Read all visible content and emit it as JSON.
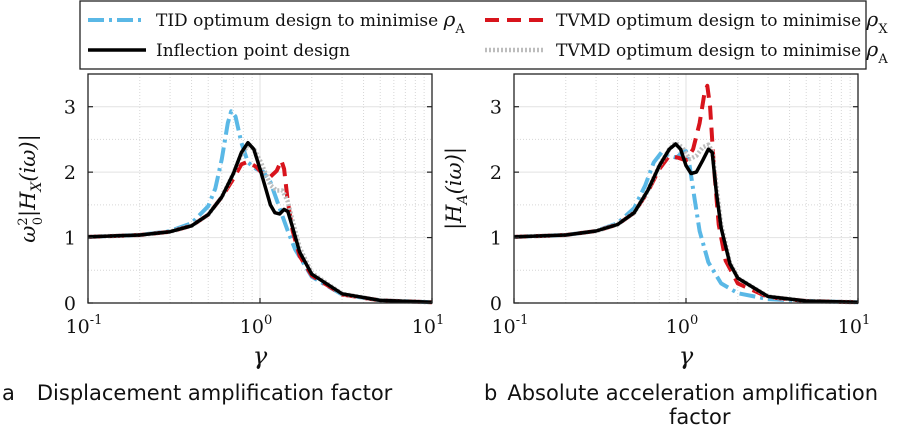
{
  "legend": {
    "entries": [
      {
        "label": "TID optimum design to minimise ",
        "sym": "ρ",
        "sub": "A",
        "color": "#5ab8e6",
        "dash": "16 5 3 5",
        "width": 4
      },
      {
        "label": "TVMD optimum design to minimise ",
        "sym": "ρ",
        "sub": "X",
        "color": "#d8141c",
        "dash": "14 8",
        "width": 4
      },
      {
        "label": "Inflection point design",
        "sym": "",
        "sub": "",
        "color": "#000000",
        "dash": "",
        "width": 3.5
      },
      {
        "label": "TVMD optimum design to minimise ",
        "sym": "ρ",
        "sub": "A",
        "color": "#bdbdbd",
        "dash": "2 2",
        "width": 4.5
      }
    ]
  },
  "captions": {
    "a": {
      "letter": "a",
      "text": "Displacement amplification factor"
    },
    "b": {
      "letter": "b",
      "text": "Absolute acceleration amplification",
      "text2": "factor"
    }
  },
  "chart_data": [
    {
      "id": "a",
      "type": "line",
      "title": "Displacement amplification factor",
      "xlabel": "γ",
      "ylabel": "ω0² |H_X(iω)|",
      "xscale": "log",
      "xlim": [
        0.1,
        10
      ],
      "ylim": [
        0,
        3.5
      ],
      "xticks": [
        {
          "v": 0.1,
          "base": "10",
          "exp": "-1"
        },
        {
          "v": 1,
          "base": "10",
          "exp": "0"
        },
        {
          "v": 10,
          "base": "10",
          "exp": "1"
        }
      ],
      "yticks": [
        0,
        1,
        2,
        3
      ],
      "grid": true,
      "series": [
        {
          "name": "TID optimum design to minimise ρA",
          "points": [
            [
              0.1,
              1.01
            ],
            [
              0.2,
              1.04
            ],
            [
              0.3,
              1.1
            ],
            [
              0.4,
              1.22
            ],
            [
              0.5,
              1.48
            ],
            [
              0.55,
              1.75
            ],
            [
              0.6,
              2.2
            ],
            [
              0.65,
              2.75
            ],
            [
              0.68,
              2.93
            ],
            [
              0.72,
              2.85
            ],
            [
              0.78,
              2.45
            ],
            [
              0.85,
              2.15
            ],
            [
              0.95,
              2.05
            ],
            [
              1.05,
              2.0
            ],
            [
              1.15,
              1.85
            ],
            [
              1.3,
              1.45
            ],
            [
              1.45,
              1.1
            ],
            [
              1.6,
              0.82
            ],
            [
              2.0,
              0.4
            ],
            [
              3.0,
              0.13
            ],
            [
              5.0,
              0.04
            ],
            [
              10.0,
              0.01
            ]
          ]
        },
        {
          "name": "TVMD optimum design to minimise ρX",
          "points": [
            [
              0.1,
              1.01
            ],
            [
              0.2,
              1.04
            ],
            [
              0.3,
              1.09
            ],
            [
              0.4,
              1.18
            ],
            [
              0.5,
              1.35
            ],
            [
              0.6,
              1.62
            ],
            [
              0.7,
              1.9
            ],
            [
              0.78,
              2.12
            ],
            [
              0.85,
              2.16
            ],
            [
              0.95,
              2.08
            ],
            [
              1.05,
              1.96
            ],
            [
              1.15,
              1.93
            ],
            [
              1.25,
              2.02
            ],
            [
              1.33,
              2.18
            ],
            [
              1.38,
              2.05
            ],
            [
              1.45,
              1.55
            ],
            [
              1.55,
              1.1
            ],
            [
              1.7,
              0.72
            ],
            [
              2.0,
              0.42
            ],
            [
              3.0,
              0.13
            ],
            [
              5.0,
              0.04
            ],
            [
              10.0,
              0.01
            ]
          ]
        },
        {
          "name": "Inflection point design",
          "points": [
            [
              0.1,
              1.01
            ],
            [
              0.2,
              1.04
            ],
            [
              0.3,
              1.09
            ],
            [
              0.4,
              1.18
            ],
            [
              0.5,
              1.35
            ],
            [
              0.6,
              1.62
            ],
            [
              0.7,
              1.98
            ],
            [
              0.78,
              2.3
            ],
            [
              0.85,
              2.45
            ],
            [
              0.92,
              2.35
            ],
            [
              1.0,
              2.05
            ],
            [
              1.08,
              1.75
            ],
            [
              1.15,
              1.5
            ],
            [
              1.22,
              1.38
            ],
            [
              1.3,
              1.36
            ],
            [
              1.38,
              1.43
            ],
            [
              1.45,
              1.4
            ],
            [
              1.55,
              1.15
            ],
            [
              1.7,
              0.78
            ],
            [
              2.0,
              0.44
            ],
            [
              3.0,
              0.14
            ],
            [
              5.0,
              0.04
            ],
            [
              10.0,
              0.01
            ]
          ]
        },
        {
          "name": "TVMD optimum design to minimise ρA",
          "points": [
            [
              0.1,
              1.01
            ],
            [
              0.2,
              1.04
            ],
            [
              0.3,
              1.09
            ],
            [
              0.4,
              1.18
            ],
            [
              0.5,
              1.35
            ],
            [
              0.6,
              1.62
            ],
            [
              0.7,
              1.98
            ],
            [
              0.78,
              2.28
            ],
            [
              0.85,
              2.4
            ],
            [
              0.92,
              2.36
            ],
            [
              1.0,
              2.18
            ],
            [
              1.08,
              1.98
            ],
            [
              1.15,
              1.8
            ],
            [
              1.25,
              1.72
            ],
            [
              1.35,
              1.72
            ],
            [
              1.45,
              1.55
            ],
            [
              1.55,
              1.25
            ],
            [
              1.7,
              0.85
            ],
            [
              2.0,
              0.46
            ],
            [
              3.0,
              0.14
            ],
            [
              5.0,
              0.04
            ],
            [
              10.0,
              0.01
            ]
          ]
        }
      ]
    },
    {
      "id": "b",
      "type": "line",
      "title": "Absolute acceleration amplification factor",
      "xlabel": "γ",
      "ylabel": "|H_A(iω)|",
      "xscale": "log",
      "xlim": [
        0.1,
        10
      ],
      "ylim": [
        0,
        3.5
      ],
      "xticks": [
        {
          "v": 0.1,
          "base": "10",
          "exp": "-1"
        },
        {
          "v": 1,
          "base": "10",
          "exp": "0"
        },
        {
          "v": 10,
          "base": "10",
          "exp": "1"
        }
      ],
      "yticks": [
        0,
        1,
        2,
        3
      ],
      "grid": true,
      "series": [
        {
          "name": "TID optimum design to minimise ρA",
          "points": [
            [
              0.1,
              1.01
            ],
            [
              0.2,
              1.04
            ],
            [
              0.3,
              1.1
            ],
            [
              0.4,
              1.22
            ],
            [
              0.5,
              1.45
            ],
            [
              0.58,
              1.8
            ],
            [
              0.65,
              2.15
            ],
            [
              0.72,
              2.3
            ],
            [
              0.8,
              2.25
            ],
            [
              0.88,
              2.22
            ],
            [
              0.95,
              2.3
            ],
            [
              1.0,
              2.32
            ],
            [
              1.05,
              2.1
            ],
            [
              1.12,
              1.6
            ],
            [
              1.2,
              1.1
            ],
            [
              1.35,
              0.62
            ],
            [
              1.6,
              0.3
            ],
            [
              2.0,
              0.15
            ],
            [
              3.0,
              0.06
            ],
            [
              5.0,
              0.03
            ],
            [
              10.0,
              0.01
            ]
          ]
        },
        {
          "name": "TVMD optimum design to minimise ρX",
          "points": [
            [
              0.1,
              1.01
            ],
            [
              0.2,
              1.04
            ],
            [
              0.3,
              1.1
            ],
            [
              0.4,
              1.2
            ],
            [
              0.5,
              1.38
            ],
            [
              0.6,
              1.7
            ],
            [
              0.7,
              2.05
            ],
            [
              0.8,
              2.25
            ],
            [
              0.9,
              2.22
            ],
            [
              1.0,
              2.18
            ],
            [
              1.1,
              2.35
            ],
            [
              1.2,
              2.75
            ],
            [
              1.28,
              3.2
            ],
            [
              1.33,
              3.32
            ],
            [
              1.38,
              3.0
            ],
            [
              1.45,
              2.1
            ],
            [
              1.55,
              1.2
            ],
            [
              1.7,
              0.65
            ],
            [
              2.0,
              0.3
            ],
            [
              3.0,
              0.09
            ],
            [
              5.0,
              0.03
            ],
            [
              10.0,
              0.01
            ]
          ]
        },
        {
          "name": "Inflection point design",
          "points": [
            [
              0.1,
              1.01
            ],
            [
              0.2,
              1.04
            ],
            [
              0.3,
              1.1
            ],
            [
              0.4,
              1.2
            ],
            [
              0.5,
              1.38
            ],
            [
              0.6,
              1.72
            ],
            [
              0.7,
              2.1
            ],
            [
              0.8,
              2.35
            ],
            [
              0.87,
              2.43
            ],
            [
              0.93,
              2.35
            ],
            [
              1.0,
              2.1
            ],
            [
              1.07,
              1.98
            ],
            [
              1.15,
              2.0
            ],
            [
              1.25,
              2.18
            ],
            [
              1.35,
              2.35
            ],
            [
              1.42,
              2.3
            ],
            [
              1.5,
              1.7
            ],
            [
              1.6,
              1.15
            ],
            [
              1.8,
              0.6
            ],
            [
              2.0,
              0.38
            ],
            [
              3.0,
              0.1
            ],
            [
              5.0,
              0.03
            ],
            [
              10.0,
              0.01
            ]
          ]
        },
        {
          "name": "TVMD optimum design to minimise ρA",
          "points": [
            [
              0.1,
              1.01
            ],
            [
              0.2,
              1.04
            ],
            [
              0.3,
              1.1
            ],
            [
              0.4,
              1.2
            ],
            [
              0.5,
              1.38
            ],
            [
              0.6,
              1.72
            ],
            [
              0.7,
              2.1
            ],
            [
              0.8,
              2.35
            ],
            [
              0.87,
              2.45
            ],
            [
              0.95,
              2.38
            ],
            [
              1.05,
              2.2
            ],
            [
              1.15,
              2.25
            ],
            [
              1.25,
              2.38
            ],
            [
              1.35,
              2.42
            ],
            [
              1.42,
              2.32
            ],
            [
              1.5,
              1.8
            ],
            [
              1.6,
              1.2
            ],
            [
              1.8,
              0.62
            ],
            [
              2.0,
              0.38
            ],
            [
              3.0,
              0.1
            ],
            [
              5.0,
              0.03
            ],
            [
              10.0,
              0.01
            ]
          ]
        }
      ]
    }
  ]
}
